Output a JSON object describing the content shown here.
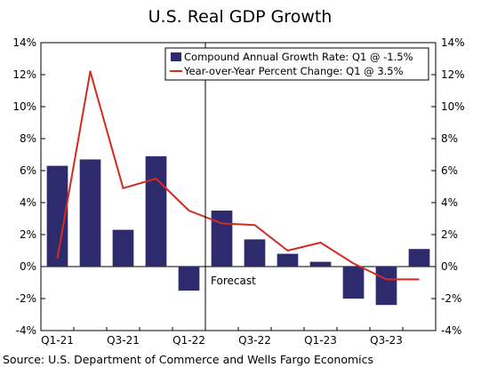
{
  "chart_data": {
    "type": "bar",
    "title": "U.S. Real GDP Growth",
    "source": "Source: U.S. Department of Commerce and Wells Fargo Economics",
    "categories": [
      "Q1-21",
      "Q2-21",
      "Q3-21",
      "Q4-21",
      "Q1-22",
      "Q2-22",
      "Q3-22",
      "Q4-22",
      "Q1-23",
      "Q2-23",
      "Q3-23",
      "Q4-23"
    ],
    "x_tick_labels": [
      "Q1-21",
      "",
      "Q3-21",
      "",
      "Q1-22",
      "",
      "Q3-22",
      "",
      "Q1-23",
      "",
      "Q3-23",
      ""
    ],
    "ylim": [
      -4,
      14
    ],
    "y_ticks": [
      -4,
      -2,
      0,
      2,
      4,
      6,
      8,
      10,
      12,
      14
    ],
    "y_tick_suffix": "%",
    "grid": false,
    "legend_position": "top-right",
    "series": [
      {
        "name": "Compound Annual Growth Rate: Q1 @ -1.5%",
        "type": "bar",
        "color": "#2e2a6e",
        "values": [
          6.3,
          6.7,
          2.3,
          6.9,
          -1.5,
          3.5,
          1.7,
          0.8,
          0.3,
          -2.0,
          -2.4,
          1.1
        ]
      },
      {
        "name": "Year-over-Year Percent Change: Q1 @ 3.5%",
        "type": "line",
        "color": "#d22b1f",
        "values": [
          0.5,
          12.2,
          4.9,
          5.5,
          3.5,
          2.7,
          2.6,
          1.0,
          1.5,
          0.2,
          -0.8,
          -0.8
        ]
      }
    ],
    "annotation": {
      "text": "Forecast",
      "boundary_after_category": "Q1-22"
    }
  }
}
